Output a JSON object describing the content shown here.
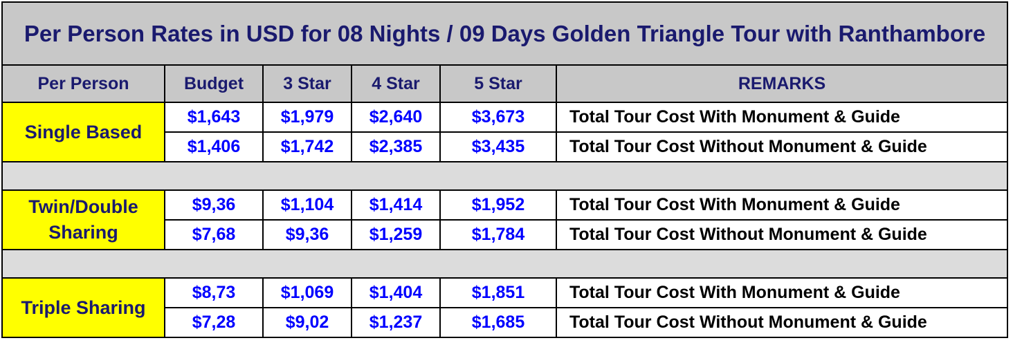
{
  "title": "Per Person Rates in USD for 08 Nights / 09 Days  Golden Triangle Tour with Ranthambore",
  "headers": [
    "Per Person",
    "Budget",
    "3 Star",
    "4 Star",
    "5 Star",
    "REMARKS"
  ],
  "groups": [
    {
      "label": "Single Based",
      "rows": [
        {
          "budget": "$1,643",
          "three_star": "$1,979",
          "four_star": "$2,640",
          "five_star": "$3,673",
          "remarks": "Total Tour Cost With Monument & Guide"
        },
        {
          "budget": "$1,406",
          "three_star": "$1,742",
          "four_star": "$2,385",
          "five_star": "$3,435",
          "remarks": "Total Tour Cost Without Monument & Guide"
        }
      ]
    },
    {
      "label": "Twin/Double Sharing",
      "rows": [
        {
          "budget": "$9,36",
          "three_star": "$1,104",
          "four_star": "$1,414",
          "five_star": "$1,952",
          "remarks": "Total Tour Cost With Monument & Guide"
        },
        {
          "budget": "$7,68",
          "three_star": "$9,36",
          "four_star": "$1,259",
          "five_star": "$1,784",
          "remarks": "Total Tour Cost Without Monument & Guide"
        }
      ]
    },
    {
      "label": "Triple Sharing",
      "rows": [
        {
          "budget": "$8,73",
          "three_star": "$1,069",
          "four_star": "$1,404",
          "five_star": "$1,851",
          "remarks": "Total Tour Cost With Monument & Guide"
        },
        {
          "budget": "$7,28",
          "three_star": "$9,02",
          "four_star": "$1,237",
          "five_star": "$1,685",
          "remarks": "Total Tour Cost Without Monument & Guide"
        }
      ]
    }
  ],
  "colors": {
    "title_text": "#1a1a6e",
    "header_background": "#c8c8c8",
    "label_background": "#ffff00",
    "price_text": "#0000ff",
    "remarks_text": "#000000",
    "spacer_background": "#dcdcdc"
  }
}
